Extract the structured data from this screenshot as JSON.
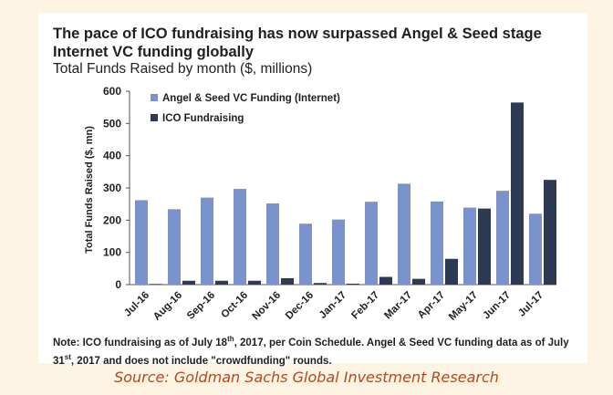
{
  "title": "The pace of ICO fundraising has now surpassed Angel & Seed stage Internet VC funding globally",
  "subtitle": "Total Funds Raised by month ($, millions)",
  "note": {
    "part1": "Note: ICO fundraising as of July 18",
    "sup1": "th",
    "part2": ", 2017, per Coin Schedule. Angel & Seed VC funding data as of July 31",
    "sup2": "st",
    "part3": ", 2017 and does not include \"crowdfunding\" rounds."
  },
  "source": "Source: Goldman Sachs Global Investment Research",
  "colors": {
    "angel": "#7b93cc",
    "ico": "#2e3a54",
    "page_background": "#fdf4e4",
    "source_text": "#b24a1e"
  },
  "chart_data": {
    "type": "bar",
    "categories": [
      "Jul-16",
      "Aug-16",
      "Sep-16",
      "Oct-16",
      "Nov-16",
      "Dec-16",
      "Jan-17",
      "Feb-17",
      "Mar-17",
      "Apr-17",
      "May-17",
      "Jun-17",
      "Jul-17"
    ],
    "series": [
      {
        "name": "Angel & Seed VC Funding (Internet)",
        "values": [
          262,
          234,
          270,
          297,
          252,
          189,
          202,
          257,
          313,
          258,
          239,
          291,
          220
        ]
      },
      {
        "name": "ICO Fundraising",
        "values": [
          2,
          12,
          12,
          12,
          20,
          5,
          3,
          24,
          18,
          80,
          236,
          565,
          325
        ]
      }
    ],
    "ylabel": "Total Funds Raised ($, mn)",
    "ylim": [
      0,
      600
    ],
    "yticks": [
      0,
      100,
      200,
      300,
      400,
      500,
      600
    ],
    "grid": false,
    "legend_position": "top-left"
  }
}
